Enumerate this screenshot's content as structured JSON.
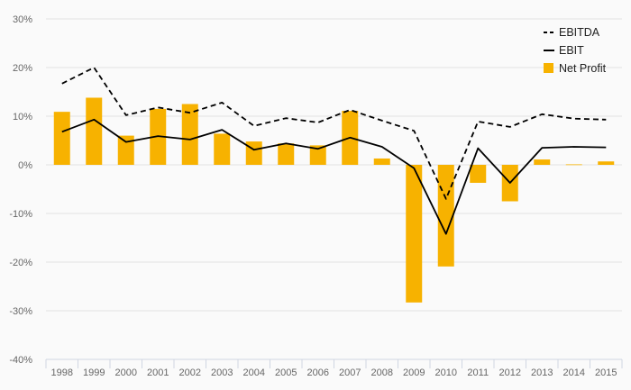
{
  "chart_data": {
    "type": "bar",
    "categories": [
      "1998",
      "1999",
      "2000",
      "2001",
      "2002",
      "2003",
      "2004",
      "2005",
      "2006",
      "2007",
      "2008",
      "2009",
      "2010",
      "2011",
      "2012",
      "2013",
      "2014",
      "2015"
    ],
    "ylim": [
      -40,
      30
    ],
    "y_ticks": [
      30,
      20,
      10,
      0,
      -10,
      -20,
      -30,
      -40
    ],
    "y_tick_labels": [
      "30%",
      "20%",
      "10%",
      "0%",
      "-10%",
      "-20%",
      "-30%",
      "-40%"
    ],
    "grid": true,
    "legend_position": "top-right",
    "series": [
      {
        "name": "EBITDA",
        "type": "line",
        "style": "dashed",
        "color": "#000000",
        "values": [
          16.7,
          20.0,
          10.2,
          11.8,
          10.7,
          12.8,
          8.0,
          9.6,
          8.7,
          11.3,
          9.1,
          7.0,
          -7.0,
          8.9,
          7.8,
          10.4,
          9.5,
          9.3
        ]
      },
      {
        "name": "EBIT",
        "type": "line",
        "style": "solid",
        "color": "#000000",
        "values": [
          6.8,
          9.3,
          4.7,
          5.9,
          5.2,
          7.2,
          3.1,
          4.4,
          3.3,
          5.6,
          3.7,
          -0.7,
          -14.2,
          3.4,
          -3.7,
          3.5,
          3.7,
          3.6
        ]
      },
      {
        "name": "Net Profit",
        "type": "bar",
        "color": "#f7b200",
        "values": [
          10.9,
          13.8,
          6.0,
          11.5,
          12.5,
          6.4,
          4.8,
          4.4,
          4.0,
          11.1,
          1.3,
          -28.3,
          -20.9,
          -3.7,
          -7.5,
          1.1,
          0.1,
          0.7
        ]
      }
    ]
  }
}
